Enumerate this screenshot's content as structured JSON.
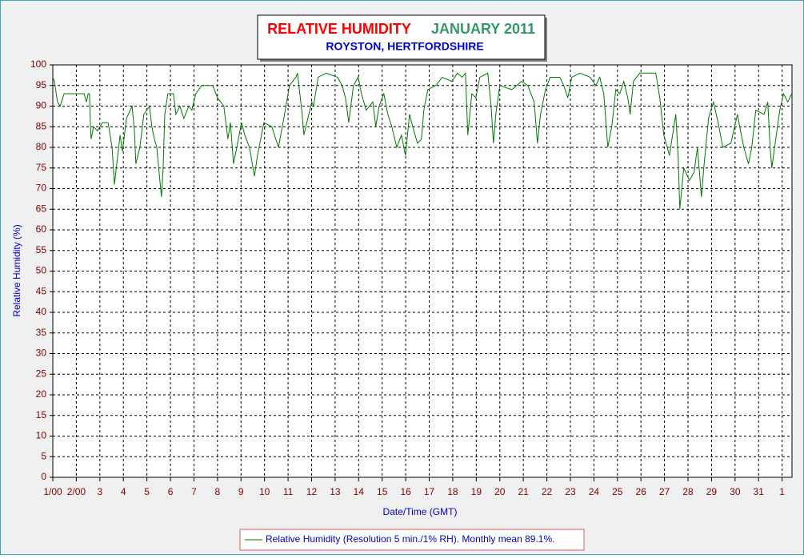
{
  "chart_data": {
    "type": "line",
    "title": "RELATIVE HUMIDITY",
    "title_date": "JANUARY 2011",
    "subtitle": "ROYSTON, HERTFORDSHIRE",
    "ylabel": "Relative Humidity (%)",
    "xlabel": "Date/Time (GMT)",
    "grid": true,
    "legend": "bottom",
    "xlim": [
      0,
      31.42
    ],
    "ylim": [
      0,
      100
    ],
    "yticks": [
      0,
      5,
      10,
      15,
      20,
      25,
      30,
      35,
      40,
      45,
      50,
      55,
      60,
      65,
      70,
      75,
      80,
      85,
      90,
      95,
      100
    ],
    "xticks": [
      {
        "value": 0,
        "label": "1/00"
      },
      {
        "value": 1,
        "label": "2/00"
      },
      {
        "value": 2,
        "label": "3"
      },
      {
        "value": 3,
        "label": "4"
      },
      {
        "value": 4,
        "label": "5"
      },
      {
        "value": 5,
        "label": "6"
      },
      {
        "value": 6,
        "label": "7"
      },
      {
        "value": 7,
        "label": "8"
      },
      {
        "value": 8,
        "label": "9"
      },
      {
        "value": 9,
        "label": "10"
      },
      {
        "value": 10,
        "label": "11"
      },
      {
        "value": 11,
        "label": "12"
      },
      {
        "value": 12,
        "label": "13"
      },
      {
        "value": 13,
        "label": "14"
      },
      {
        "value": 14,
        "label": "15"
      },
      {
        "value": 15,
        "label": "16"
      },
      {
        "value": 16,
        "label": "17"
      },
      {
        "value": 17,
        "label": "18"
      },
      {
        "value": 18,
        "label": "19"
      },
      {
        "value": 19,
        "label": "20"
      },
      {
        "value": 20,
        "label": "21"
      },
      {
        "value": 21,
        "label": "22"
      },
      {
        "value": 22,
        "label": "23"
      },
      {
        "value": 23,
        "label": "24"
      },
      {
        "value": 24,
        "label": "25"
      },
      {
        "value": 25,
        "label": "26"
      },
      {
        "value": 26,
        "label": "27"
      },
      {
        "value": 27,
        "label": "28"
      },
      {
        "value": 28,
        "label": "29"
      },
      {
        "value": 29,
        "label": "30"
      },
      {
        "value": 30,
        "label": "31"
      },
      {
        "value": 31,
        "label": "1"
      }
    ],
    "x": [
      0,
      0.07,
      0.2,
      0.31,
      0.48,
      1.02,
      1.33,
      1.43,
      1.5,
      1.56,
      1.6,
      1.63,
      1.73,
      1.9,
      2.11,
      2.35,
      2.52,
      2.62,
      2.72,
      2.86,
      2.96,
      3.13,
      3.37,
      3.47,
      3.53,
      3.7,
      3.87,
      4.11,
      4.21,
      4.32,
      4.42,
      4.55,
      4.62,
      4.69,
      4.76,
      4.89,
      5.13,
      5.23,
      5.4,
      5.57,
      5.78,
      5.91,
      6.08,
      6.32,
      6.8,
      7.0,
      7.27,
      7.44,
      7.55,
      7.68,
      7.82,
      8.02,
      8.16,
      8.36,
      8.57,
      8.7,
      8.97,
      9.31,
      9.59,
      9.82,
      10.06,
      10.33,
      10.4,
      10.6,
      10.67,
      10.84,
      11.01,
      11.08,
      11.28,
      11.62,
      12.1,
      12.3,
      12.44,
      12.58,
      12.78,
      12.98,
      13.12,
      13.32,
      13.46,
      13.6,
      13.73,
      13.87,
      14.07,
      14.24,
      14.41,
      14.62,
      14.82,
      14.99,
      15.16,
      15.3,
      15.5,
      15.67,
      15.77,
      15.94,
      16.28,
      16.55,
      16.96,
      17.2,
      17.4,
      17.54,
      17.64,
      17.81,
      17.98,
      18.15,
      18.49,
      18.63,
      18.73,
      18.83,
      19.0,
      19.51,
      19.92,
      20.19,
      20.46,
      20.6,
      20.73,
      20.94,
      21.14,
      21.38,
      21.55,
      21.72,
      21.89,
      22.06,
      22.4,
      22.84,
      23.08,
      23.25,
      23.42,
      23.59,
      23.76,
      23.93,
      24.1,
      24.27,
      24.44,
      24.54,
      24.68,
      24.95,
      25.63,
      25.8,
      25.97,
      26.21,
      26.48,
      26.58,
      26.65,
      26.82,
      27.06,
      27.26,
      27.4,
      27.57,
      27.67,
      27.87,
      28.08,
      28.28,
      28.48,
      28.82,
      29.1,
      29.23,
      29.37,
      29.57,
      29.71,
      29.88,
      30.23,
      30.39,
      30.49,
      30.56,
      30.73,
      30.9,
      31.06,
      31.24,
      31.41
    ],
    "series": [
      {
        "name": "Relative Humidity (Resolution 5 min./1% RH). Monthly mean 89.1%.",
        "color": "#007a00",
        "values": [
          97,
          96,
          91,
          90,
          93,
          93,
          93,
          91,
          93,
          93,
          85,
          82,
          85,
          84,
          86,
          86,
          80,
          71,
          76,
          83,
          79,
          87,
          90,
          84,
          76,
          80,
          88,
          90,
          85,
          82,
          80,
          72,
          68,
          75,
          88,
          93,
          93,
          88,
          90,
          87,
          90,
          89,
          93,
          95,
          95,
          92,
          90,
          82,
          86,
          76,
          80,
          86,
          83,
          80,
          73,
          78,
          86,
          85,
          80,
          87,
          95,
          97,
          98,
          88,
          83,
          87,
          91,
          90,
          97,
          98,
          97,
          95,
          92,
          86,
          95,
          97,
          93,
          89,
          90,
          91,
          85,
          90,
          93,
          88,
          85,
          80,
          83,
          78,
          88,
          85,
          81,
          82,
          89,
          94,
          95,
          97,
          96,
          98,
          97,
          98,
          83,
          93,
          92,
          97,
          98,
          90,
          81,
          88,
          95,
          94,
          96,
          95,
          91,
          81,
          88,
          94,
          97,
          97,
          97,
          95,
          92,
          97,
          98,
          97,
          95,
          97,
          93,
          80,
          85,
          94,
          93,
          96,
          92,
          88,
          96,
          98,
          98,
          92,
          83,
          78,
          88,
          78,
          65,
          75,
          72,
          74,
          80,
          68,
          75,
          87,
          91,
          86,
          80,
          81,
          88,
          84,
          80,
          76,
          80,
          89,
          88,
          91,
          80,
          75,
          82,
          89,
          93,
          91,
          93
        ]
      }
    ]
  }
}
